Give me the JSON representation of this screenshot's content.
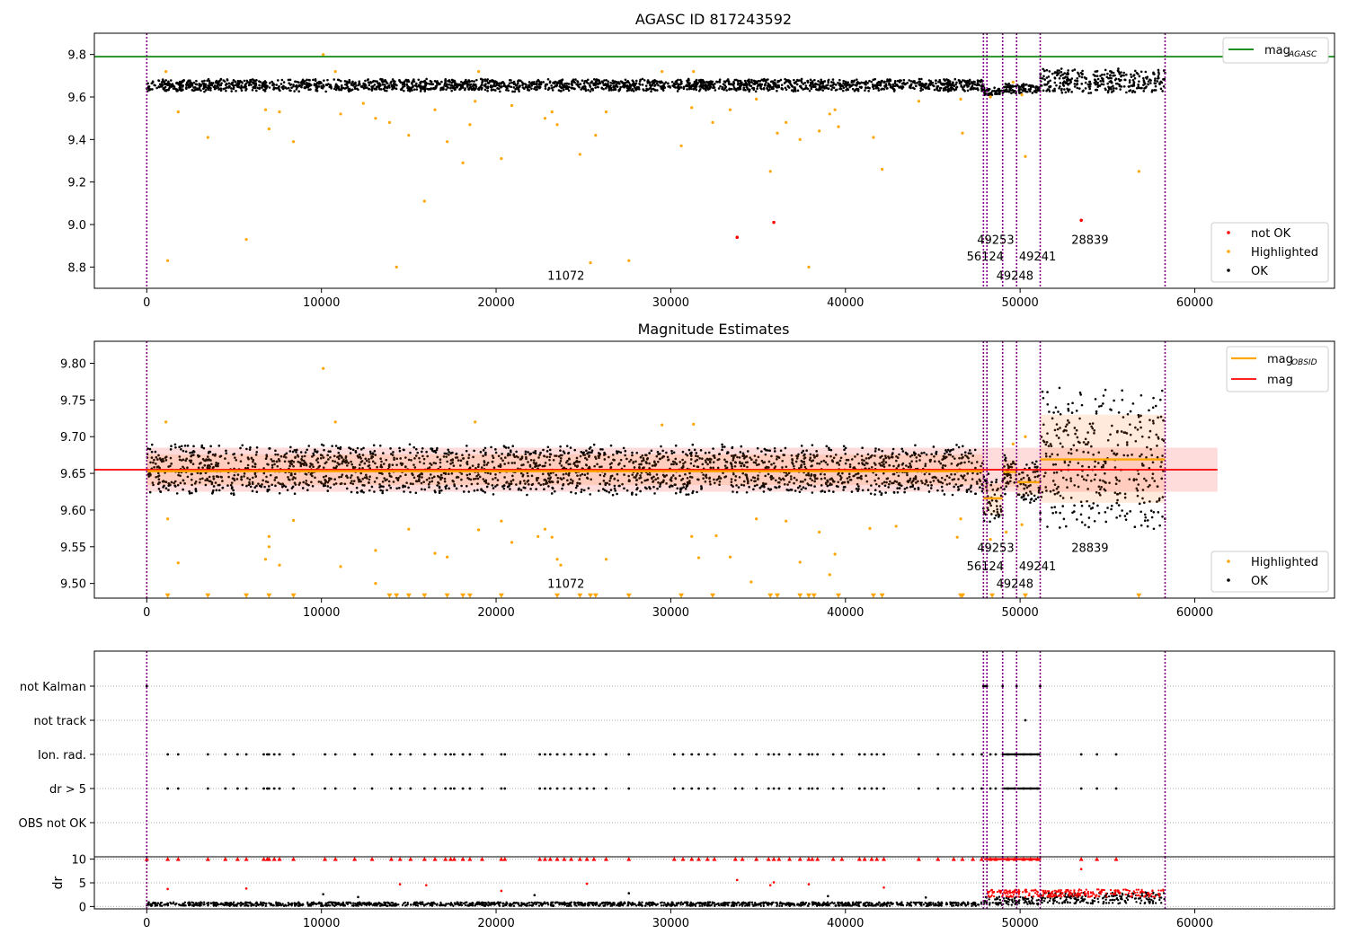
{
  "colors": {
    "ok": "#000000",
    "highlighted": "#ffa500",
    "not_ok": "#ff0000",
    "agasc_line": "#008000",
    "mag_line": "#ff0000",
    "mag_obsid_line": "#ffa500",
    "obsid_vline": "#800080",
    "band": "#ffd6d6",
    "grid": "#b0b0b0"
  },
  "chart_data": [
    {
      "type": "scatter",
      "title": "AGASC ID 817243592",
      "xlim": [
        -3000,
        68000
      ],
      "ylim": [
        8.7,
        9.9
      ],
      "xticks": [
        0,
        10000,
        20000,
        30000,
        40000,
        50000,
        60000
      ],
      "yticks": [
        8.8,
        9.0,
        9.2,
        9.4,
        9.6,
        9.8
      ],
      "ytick_labels": [
        "8.8",
        "9.0",
        "9.2",
        "9.4",
        "9.6",
        "9.8"
      ],
      "grid": false,
      "obsid_boundaries": [
        0,
        47900,
        48100,
        49000,
        49800,
        51150,
        58300
      ],
      "obsid_labels": [
        {
          "text": "11072",
          "x": 24000,
          "y": 8.74
        },
        {
          "text": "49253",
          "x": 48600,
          "y": 8.91
        },
        {
          "text": "56124",
          "x": 48000,
          "y": 8.83
        },
        {
          "text": "49241",
          "x": 51000,
          "y": 8.83
        },
        {
          "text": "49248",
          "x": 49700,
          "y": 8.74
        },
        {
          "text": "28839",
          "x": 54000,
          "y": 8.91
        }
      ],
      "mag_agasc": 9.79,
      "legend_upper": {
        "location": "upper-right",
        "entries": [
          {
            "label": "mag",
            "sub": "AGASC",
            "kind": "line",
            "color_key": "agasc_line"
          }
        ]
      },
      "legend_lower": {
        "location": "lower-right",
        "entries": [
          {
            "label": "not OK",
            "kind": "dot",
            "color_key": "not_ok"
          },
          {
            "label": "Highlighted",
            "kind": "dot",
            "color_key": "highlighted"
          },
          {
            "label": "OK",
            "kind": "dot",
            "color_key": "ok"
          }
        ]
      },
      "segments": [
        {
          "x0": 0,
          "x1": 47900,
          "center": 9.655,
          "half_width": 0.03
        },
        {
          "x0": 47900,
          "x1": 49000,
          "center": 9.625,
          "half_width": 0.02
        },
        {
          "x0": 49000,
          "x1": 51150,
          "center": 9.64,
          "half_width": 0.025
        },
        {
          "x0": 51150,
          "x1": 58300,
          "center": 9.675,
          "half_width": 0.06
        }
      ],
      "highlighted": [
        [
          1200,
          8.83
        ],
        [
          5700,
          8.93
        ],
        [
          14300,
          8.8
        ],
        [
          25400,
          8.82
        ],
        [
          27600,
          8.83
        ],
        [
          37900,
          8.8
        ],
        [
          15900,
          9.11
        ],
        [
          18100,
          9.29
        ],
        [
          20300,
          9.31
        ],
        [
          24800,
          9.33
        ],
        [
          35700,
          9.25
        ],
        [
          42100,
          9.26
        ],
        [
          50300,
          9.32
        ],
        [
          56800,
          9.25
        ],
        [
          3500,
          9.41
        ],
        [
          8400,
          9.39
        ],
        [
          15000,
          9.42
        ],
        [
          17200,
          9.39
        ],
        [
          25700,
          9.42
        ],
        [
          30600,
          9.37
        ],
        [
          36100,
          9.43
        ],
        [
          37400,
          9.4
        ],
        [
          41600,
          9.41
        ],
        [
          46700,
          9.43
        ],
        [
          7000,
          9.45
        ],
        [
          13100,
          9.5
        ],
        [
          18500,
          9.47
        ],
        [
          22800,
          9.5
        ],
        [
          32400,
          9.48
        ],
        [
          36600,
          9.48
        ],
        [
          38500,
          9.44
        ],
        [
          39600,
          9.46
        ],
        [
          13900,
          9.48
        ],
        [
          23500,
          9.47
        ],
        [
          1800,
          9.53
        ],
        [
          7600,
          9.53
        ],
        [
          11100,
          9.52
        ],
        [
          16500,
          9.54
        ],
        [
          26300,
          9.53
        ],
        [
          31200,
          9.55
        ],
        [
          33400,
          9.54
        ],
        [
          39400,
          9.54
        ],
        [
          10100,
          9.8
        ],
        [
          10800,
          9.72
        ],
        [
          19000,
          9.72
        ],
        [
          29500,
          9.72
        ],
        [
          31300,
          9.72
        ],
        [
          6800,
          9.54
        ],
        [
          1100,
          9.72
        ],
        [
          49600,
          9.67
        ],
        [
          50100,
          9.61
        ],
        [
          48300,
          9.6
        ],
        [
          46600,
          9.59
        ],
        [
          44200,
          9.58
        ],
        [
          34900,
          9.59
        ],
        [
          39100,
          9.52
        ],
        [
          23200,
          9.53
        ],
        [
          20900,
          9.56
        ],
        [
          18800,
          9.58
        ],
        [
          12400,
          9.57
        ]
      ],
      "not_ok": [
        [
          33800,
          8.94
        ],
        [
          35900,
          9.01
        ],
        [
          53500,
          9.02
        ]
      ]
    },
    {
      "type": "scatter",
      "title": "Magnitude Estimates",
      "xlim": [
        -3000,
        68000
      ],
      "ylim": [
        9.48,
        9.83
      ],
      "xticks": [
        0,
        10000,
        20000,
        30000,
        40000,
        50000,
        60000
      ],
      "yticks": [
        9.5,
        9.55,
        9.6,
        9.65,
        9.7,
        9.75,
        9.8
      ],
      "ytick_labels": [
        "9.50",
        "9.55",
        "9.60",
        "9.65",
        "9.70",
        "9.75",
        "9.80"
      ],
      "grid": false,
      "obsid_boundaries": [
        0,
        47900,
        48100,
        49000,
        49800,
        51150,
        58300
      ],
      "obsid_labels": [
        {
          "text": "11072",
          "x": 24000,
          "y": 9.494
        },
        {
          "text": "49253",
          "x": 48600,
          "y": 9.543
        },
        {
          "text": "56124",
          "x": 48000,
          "y": 9.518
        },
        {
          "text": "49241",
          "x": 51000,
          "y": 9.518
        },
        {
          "text": "49248",
          "x": 49700,
          "y": 9.494
        },
        {
          "text": "28839",
          "x": 54000,
          "y": 9.543
        }
      ],
      "mag": 9.655,
      "mag_band": [
        9.625,
        9.685
      ],
      "mag_obsid": [
        {
          "x0": 0,
          "x1": 47900,
          "y": 9.653
        },
        {
          "x0": 47900,
          "x1": 49000,
          "y": 9.616
        },
        {
          "x0": 49000,
          "x1": 49800,
          "y": 9.652
        },
        {
          "x0": 49800,
          "x1": 51150,
          "y": 9.638
        },
        {
          "x0": 51150,
          "x1": 58300,
          "y": 9.669
        }
      ],
      "legend_upper": {
        "location": "upper-right",
        "entries": [
          {
            "label": "mag",
            "sub": "OBSID",
            "kind": "line",
            "color_key": "mag_obsid_line"
          },
          {
            "label": "mag",
            "kind": "line",
            "color_key": "mag_line"
          }
        ]
      },
      "legend_lower": {
        "location": "lower-right",
        "entries": [
          {
            "label": "Highlighted",
            "kind": "dot",
            "color_key": "highlighted"
          },
          {
            "label": "OK",
            "kind": "dot",
            "color_key": "ok"
          }
        ]
      },
      "segments": [
        {
          "x0": 0,
          "x1": 47900,
          "center": 9.655,
          "half_width": 0.035
        },
        {
          "x0": 47900,
          "x1": 49000,
          "center": 9.615,
          "half_width": 0.035
        },
        {
          "x0": 49000,
          "x1": 49800,
          "center": 9.65,
          "half_width": 0.03
        },
        {
          "x0": 49800,
          "x1": 51150,
          "center": 9.638,
          "half_width": 0.03
        },
        {
          "x0": 51150,
          "x1": 58300,
          "center": 9.67,
          "half_width": 0.1
        }
      ],
      "highlighted": [
        [
          10100,
          9.793
        ],
        [
          10800,
          9.72
        ],
        [
          1100,
          9.72
        ],
        [
          18800,
          9.72
        ],
        [
          29500,
          9.716
        ],
        [
          31300,
          9.717
        ],
        [
          1200,
          9.588
        ],
        [
          1800,
          9.528
        ],
        [
          7000,
          9.564
        ],
        [
          7000,
          9.55
        ],
        [
          6800,
          9.533
        ],
        [
          7600,
          9.525
        ],
        [
          8400,
          9.586
        ],
        [
          11100,
          9.523
        ],
        [
          13100,
          9.545
        ],
        [
          13100,
          9.5
        ],
        [
          15000,
          9.574
        ],
        [
          16500,
          9.541
        ],
        [
          17200,
          9.536
        ],
        [
          19000,
          9.573
        ],
        [
          20300,
          9.585
        ],
        [
          20900,
          9.556
        ],
        [
          22400,
          9.564
        ],
        [
          22800,
          9.574
        ],
        [
          23200,
          9.563
        ],
        [
          23500,
          9.533
        ],
        [
          23700,
          9.525
        ],
        [
          26300,
          9.533
        ],
        [
          31200,
          9.564
        ],
        [
          31600,
          9.535
        ],
        [
          32600,
          9.565
        ],
        [
          33400,
          9.536
        ],
        [
          34900,
          9.588
        ],
        [
          34600,
          9.502
        ],
        [
          36600,
          9.585
        ],
        [
          37400,
          9.529
        ],
        [
          38500,
          9.57
        ],
        [
          39100,
          9.512
        ],
        [
          39400,
          9.54
        ],
        [
          41400,
          9.575
        ],
        [
          42900,
          9.578
        ],
        [
          46600,
          9.588
        ],
        [
          46400,
          9.563
        ],
        [
          48300,
          9.56
        ],
        [
          49600,
          9.69
        ],
        [
          50100,
          9.58
        ],
        [
          50300,
          9.7
        ],
        [
          49200,
          9.57
        ]
      ],
      "clipped_low": [
        1200,
        3500,
        5700,
        7000,
        8400,
        13900,
        14300,
        15000,
        15900,
        17200,
        18100,
        18500,
        20300,
        23500,
        24800,
        25400,
        25700,
        27600,
        30600,
        32400,
        35700,
        36100,
        37400,
        37900,
        38200,
        39600,
        41600,
        42100,
        46600,
        46700,
        48400,
        50300,
        56800
      ]
    },
    {
      "type": "scatter",
      "title": "",
      "xlim": [
        -3000,
        68000
      ],
      "categories": [
        "not Kalman",
        "not track",
        "Ion. rad.",
        "dr > 5",
        "OBS not OK"
      ],
      "grid": true,
      "obsid_boundaries": [
        0,
        47900,
        48100,
        49000,
        49800,
        51150,
        58300
      ],
      "flags": {
        "not Kalman": [
          0,
          47900,
          48000,
          48100,
          49000,
          49800,
          51150
        ],
        "not track": [
          50300
        ],
        "Ion. rad.": [
          1200,
          1800,
          3500,
          4500,
          5200,
          5700,
          6700,
          6900,
          7000,
          7300,
          7600,
          8400,
          10200,
          10800,
          11900,
          12900,
          14000,
          14500,
          15100,
          15900,
          16500,
          17100,
          17400,
          17600,
          18100,
          18500,
          19200,
          20300,
          20500,
          22500,
          22800,
          23100,
          23500,
          23900,
          24300,
          24800,
          25200,
          25600,
          26300,
          27600,
          30200,
          30700,
          31200,
          31600,
          32100,
          32500,
          33700,
          34100,
          34900,
          35600,
          35900,
          36200,
          36800,
          37400,
          37900,
          38100,
          38400,
          39300,
          39800,
          40800,
          41100,
          41500,
          41800,
          42200,
          44200,
          45300,
          46200,
          46700,
          47300,
          47800,
          48300,
          48600,
          49300,
          49700,
          50200,
          50600,
          51000,
          53500,
          54400,
          55500
        ],
        "dr > 5": [
          1200,
          1800,
          3500,
          4500,
          5200,
          5700,
          6700,
          6900,
          7000,
          7300,
          7600,
          8400,
          10200,
          10800,
          11900,
          12900,
          14000,
          14500,
          15100,
          15900,
          16500,
          17100,
          17400,
          17600,
          18100,
          18500,
          19200,
          20300,
          20500,
          22500,
          22800,
          23100,
          23500,
          23900,
          24300,
          24800,
          25200,
          25600,
          26300,
          27600,
          30200,
          30700,
          31200,
          31600,
          32100,
          32500,
          33700,
          34100,
          34900,
          35600,
          35900,
          36200,
          36800,
          37400,
          37900,
          38100,
          38400,
          39300,
          39800,
          40800,
          41100,
          41500,
          41800,
          42200,
          44200,
          45300,
          46200,
          46700,
          47300,
          47800,
          48300,
          48600,
          49300,
          49700,
          50200,
          50600,
          51000,
          53500,
          54400,
          55500
        ],
        "OBS not OK": []
      }
    },
    {
      "type": "scatter",
      "title": "",
      "ylabel": "dr",
      "xlim": [
        -3000,
        68000
      ],
      "ylim": [
        -0.5,
        10.5
      ],
      "xticks": [
        0,
        10000,
        20000,
        30000,
        40000,
        50000,
        60000
      ],
      "yticks": [
        0,
        5,
        10
      ],
      "ytick_labels": [
        "0",
        "5",
        "10"
      ],
      "grid": true,
      "obsid_boundaries": [
        0,
        47900,
        48100,
        49000,
        49800,
        51150,
        58300
      ],
      "dr_cap": 10,
      "clipped_high": [
        0,
        1200,
        1800,
        3500,
        4500,
        5200,
        5700,
        6700,
        6900,
        7000,
        7300,
        7600,
        8400,
        10200,
        10800,
        11900,
        12900,
        14000,
        14500,
        15100,
        15900,
        16500,
        17100,
        17400,
        17600,
        18100,
        18500,
        19200,
        20300,
        20500,
        22500,
        22800,
        23100,
        23500,
        23900,
        24300,
        24800,
        25200,
        25600,
        26300,
        27600,
        30200,
        30700,
        31200,
        31600,
        32100,
        32500,
        33700,
        34100,
        34900,
        35600,
        35900,
        36200,
        36800,
        37400,
        37900,
        38100,
        38400,
        39300,
        39800,
        40800,
        41100,
        41500,
        41800,
        42200,
        44200,
        45300,
        46200,
        46700,
        47300,
        47800,
        48300,
        48600,
        49300,
        49700,
        50200,
        50600,
        51000,
        53500,
        54400,
        55500
      ],
      "outliers_red": [
        [
          1200,
          3.7
        ],
        [
          5700,
          3.8
        ],
        [
          14500,
          4.7
        ],
        [
          20300,
          3.3
        ],
        [
          25200,
          4.8
        ],
        [
          33800,
          5.6
        ],
        [
          35700,
          4.5
        ],
        [
          35900,
          5.1
        ],
        [
          37900,
          4.7
        ],
        [
          53500,
          7.9
        ],
        [
          42200,
          4.0
        ],
        [
          16000,
          4.5
        ]
      ],
      "outliers_ok": [
        [
          10100,
          2.6
        ],
        [
          22200,
          2.4
        ],
        [
          27600,
          2.8
        ],
        [
          39000,
          2.2
        ],
        [
          12100,
          2.0
        ],
        [
          44600,
          1.9
        ]
      ],
      "segments": [
        {
          "x0": 0,
          "x1": 47900,
          "center": 0.5,
          "half_width": 0.4
        },
        {
          "x0": 47900,
          "x1": 51150,
          "center": 1.2,
          "half_width": 0.9
        },
        {
          "x0": 51150,
          "x1": 58300,
          "center": 1.8,
          "half_width": 1.2
        }
      ]
    }
  ]
}
